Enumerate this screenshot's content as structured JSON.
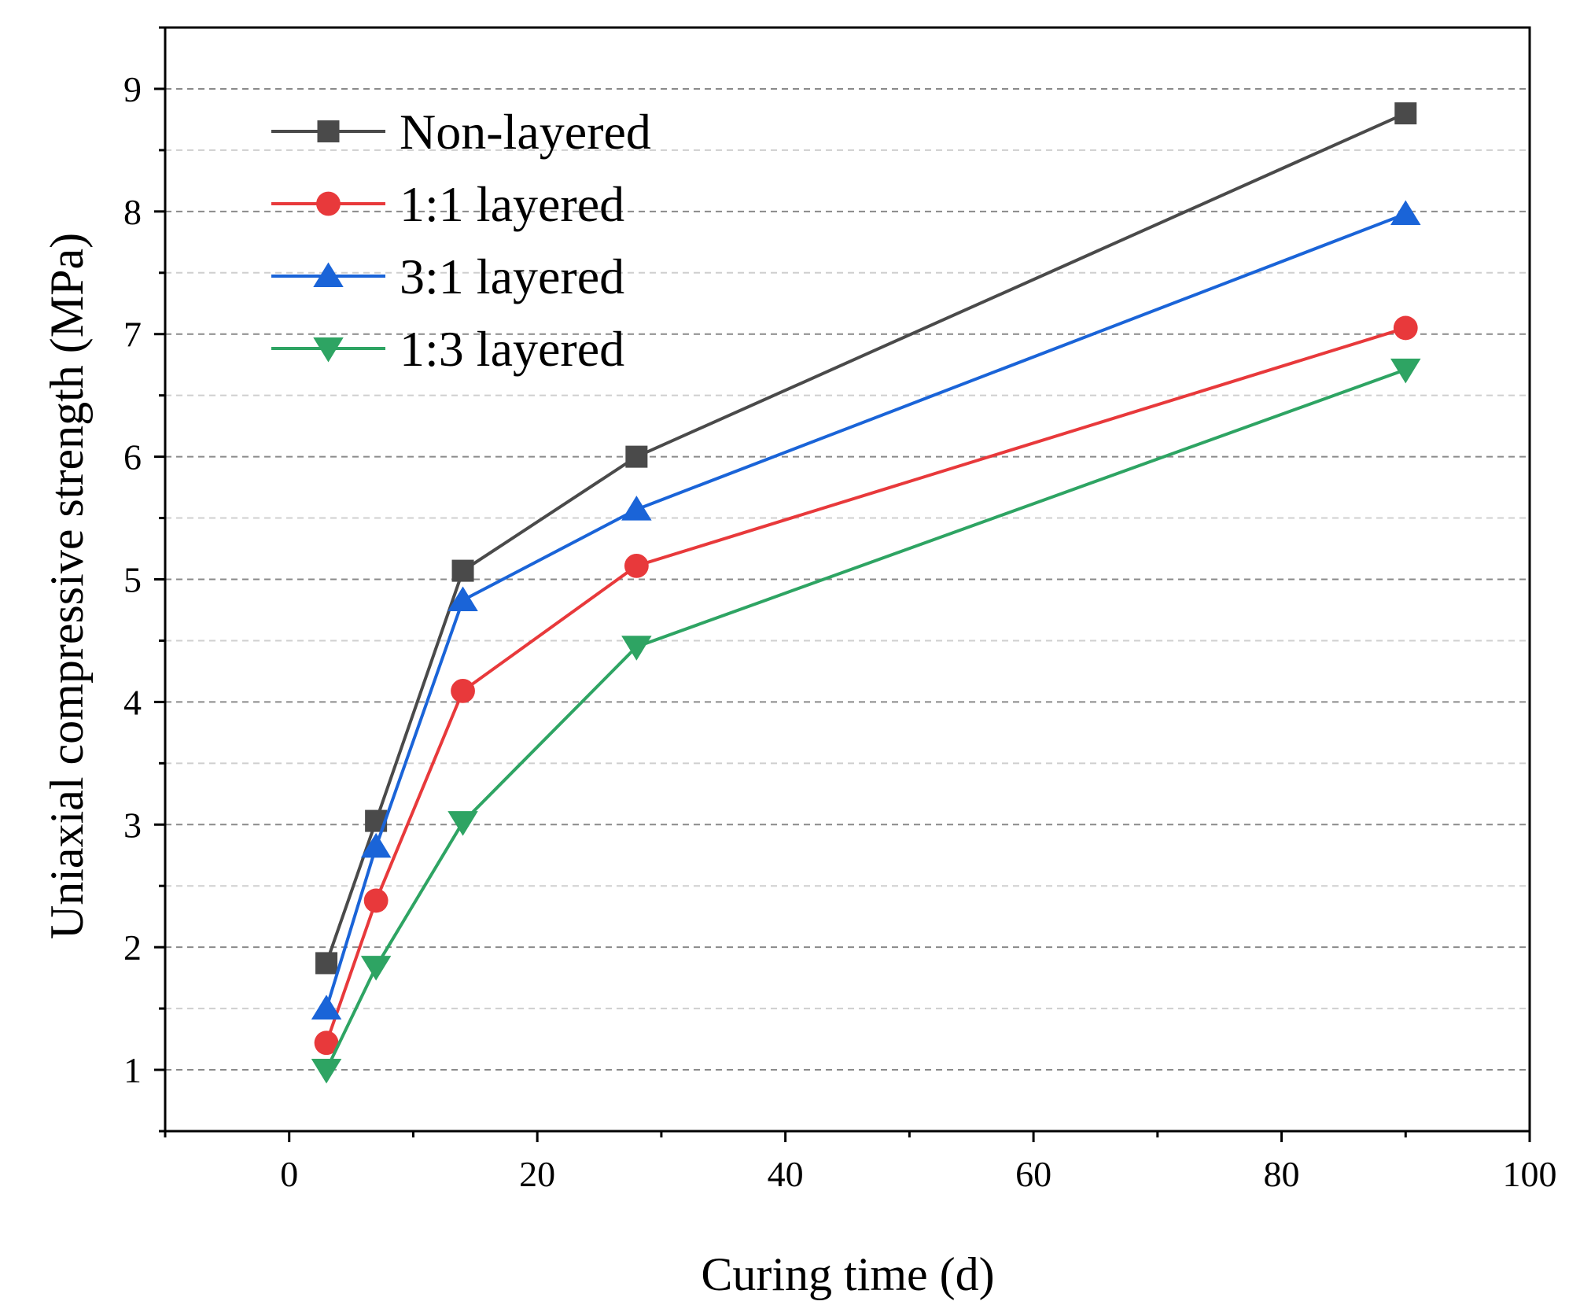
{
  "chart_data": {
    "type": "line",
    "title": "",
    "xlabel": "Curing time (d)",
    "ylabel": "Uniaxial compressive strength (MPa)",
    "xlim": [
      -10,
      100
    ],
    "ylim": [
      0.5,
      9.5
    ],
    "xticks": [
      0,
      20,
      40,
      60,
      80,
      100
    ],
    "xtick_labels": [
      "0",
      "20",
      "40",
      "60",
      "80",
      "100"
    ],
    "yticks": [
      1,
      2,
      3,
      4,
      5,
      6,
      7,
      8,
      9
    ],
    "ytick_labels": [
      "1",
      "2",
      "3",
      "4",
      "5",
      "6",
      "7",
      "8",
      "9"
    ],
    "grid": "horizontal dashed",
    "legend_position": "top-left",
    "x": [
      3,
      7,
      14,
      28,
      90
    ],
    "series": [
      {
        "name": "Non-layered",
        "values": [
          1.87,
          3.03,
          5.07,
          6.0,
          8.8
        ],
        "color": "#4a4a4a",
        "marker": "square"
      },
      {
        "name": "1:1 layered",
        "values": [
          1.22,
          2.38,
          4.09,
          5.11,
          7.05
        ],
        "color": "#e8393b",
        "marker": "circle"
      },
      {
        "name": "3:1 layered",
        "values": [
          1.5,
          2.82,
          4.83,
          5.57,
          7.98
        ],
        "color": "#1a64d8",
        "marker": "triangle-up"
      },
      {
        "name": "1:3 layered",
        "values": [
          1.0,
          1.84,
          3.02,
          4.45,
          6.71
        ],
        "color": "#2ea463",
        "marker": "triangle-down"
      }
    ]
  }
}
